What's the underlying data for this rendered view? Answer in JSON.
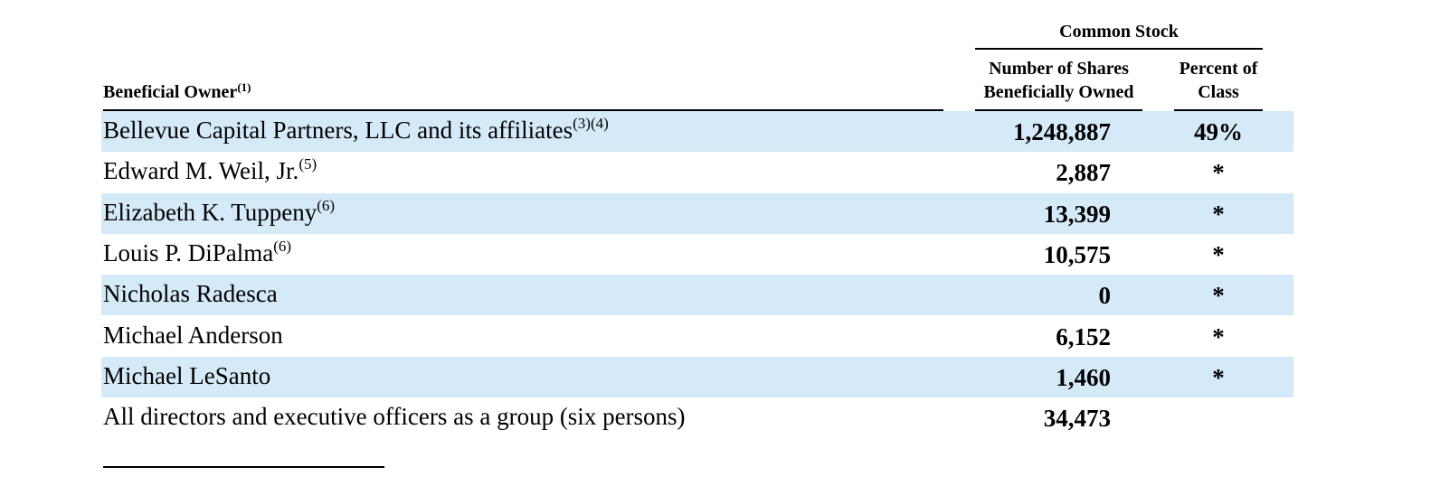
{
  "header": {
    "group": "Common Stock",
    "owner": {
      "text": "Beneficial Owner",
      "note": "(1)"
    },
    "shares": "Number of Shares Beneficially Owned",
    "percent": "Percent of Class"
  },
  "table": {
    "rows": [
      {
        "name": "Bellevue Capital Partners, LLC and its affiliates",
        "note": "(3)(4)",
        "shares": "1,248,887",
        "percent": "49%"
      },
      {
        "name": "Edward M. Weil, Jr.",
        "note": "(5)",
        "shares": "2,887",
        "percent": "*"
      },
      {
        "name": "Elizabeth K. Tuppeny",
        "note": "(6)",
        "shares": "13,399",
        "percent": "*"
      },
      {
        "name": "Louis P. DiPalma",
        "note": "(6)",
        "shares": "10,575",
        "percent": "*"
      },
      {
        "name": "Nicholas Radesca",
        "shares": "0",
        "percent": "*"
      },
      {
        "name": "Michael Anderson",
        "shares": "6,152",
        "percent": "*"
      },
      {
        "name": "Michael LeSanto",
        "shares": "1,460",
        "percent": "*"
      },
      {
        "name": "All directors and executive officers as a group (six persons)",
        "shares": "34,473"
      }
    ]
  }
}
